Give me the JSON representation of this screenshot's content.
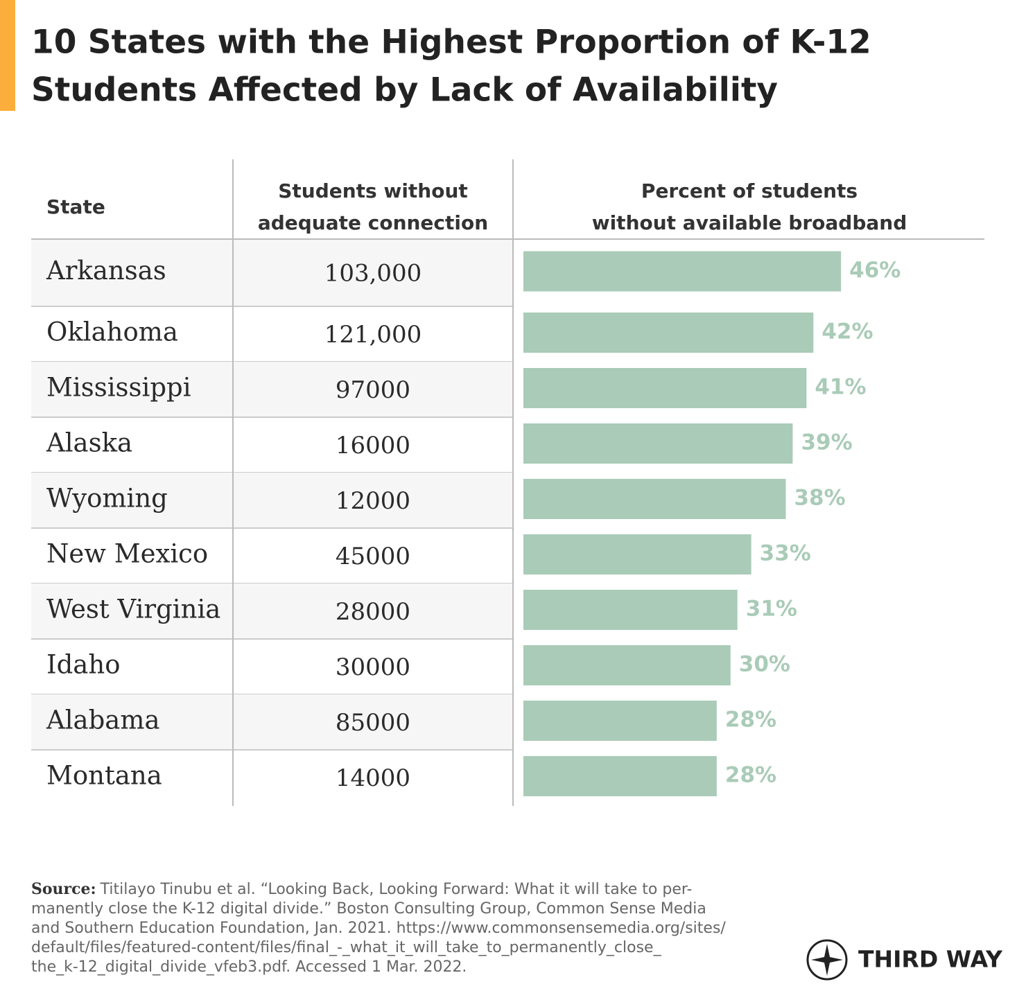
{
  "chart_data": {
    "type": "bar",
    "title_lines": [
      "10 States with the Highest Proportion of K-12",
      "Students Affected by Lack of Availability"
    ],
    "headers": {
      "state": "State",
      "students": [
        "Students without",
        "adequate connection"
      ],
      "percent": [
        "Percent of students",
        "without available broadband"
      ]
    },
    "categories": [
      "Arkansas",
      "Oklahoma",
      "Mississippi",
      "Alaska",
      "Wyoming",
      "New Mexico",
      "West Virginia",
      "Idaho",
      "Alabama",
      "Montana"
    ],
    "students": [
      "103,000",
      "121,000",
      "97000",
      "16000",
      "12000",
      "45000",
      "28000",
      "30000",
      "85000",
      "14000"
    ],
    "values": [
      46,
      42,
      41,
      39,
      38,
      33,
      31,
      30,
      28,
      28
    ],
    "value_labels": [
      "46%",
      "42%",
      "41%",
      "39%",
      "38%",
      "33%",
      "31%",
      "30%",
      "28%",
      "28%"
    ],
    "color": "#a9cbb7"
  },
  "source": {
    "label": "Source:",
    "lines": [
      "Titilayo Tinubu et al. “Looking Back, Looking Forward: What it will take to per-",
      "manently close the K-12 digital divide.” Boston Consulting Group, Common Sense Media",
      "and Southern Education Foundation, Jan. 2021. https://www.commonsensemedia.org/sites/",
      "default/files/featured-content/files/final_-_what_it_will_take_to_permanently_close_",
      "the_k-12_digital_divide_vfeb3.pdf. Accessed 1 Mar. 2022."
    ]
  },
  "logo": "THIRD WAY"
}
